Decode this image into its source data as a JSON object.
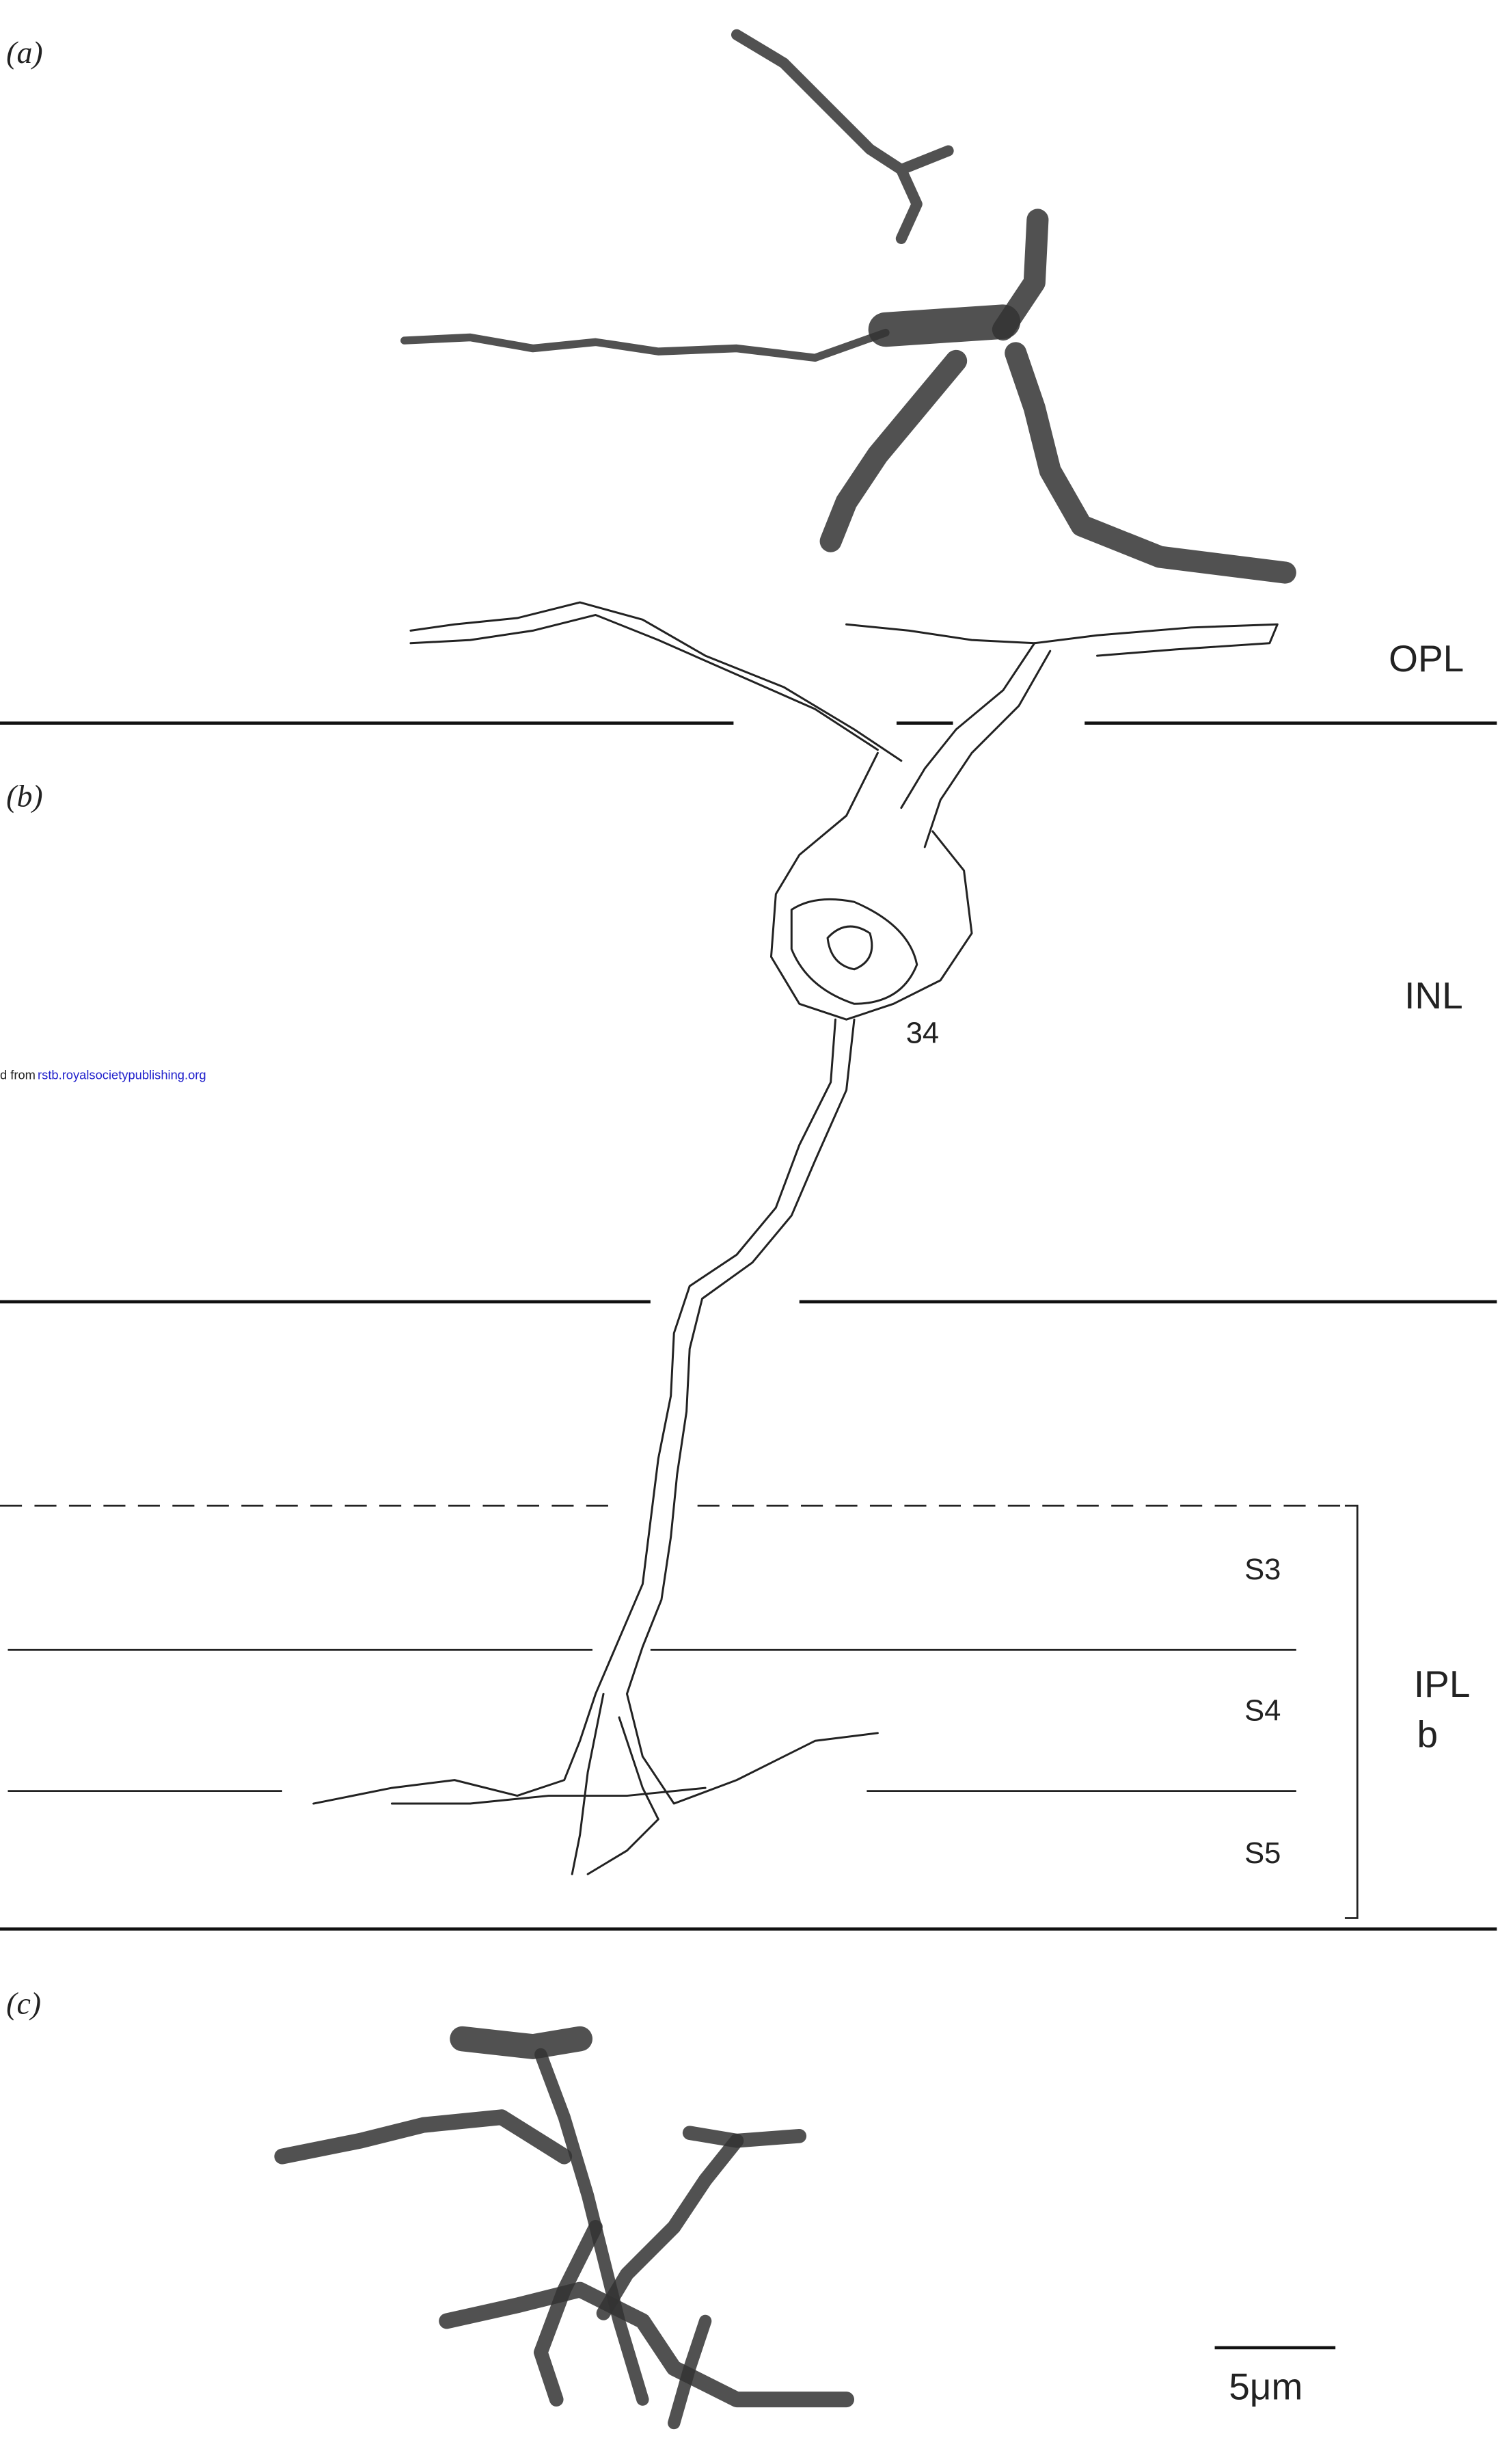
{
  "panels": {
    "a": "(a)",
    "b": "(b)",
    "c": "(c)"
  },
  "layers": {
    "opl": "OPL",
    "inl": "INL",
    "ipl": "IPL",
    "ipl_sub": "b"
  },
  "strata": [
    "S3",
    "S4",
    "S5"
  ],
  "cell_label": "34",
  "scale_bar": "5μm",
  "watermark": {
    "prefix": "d from",
    "link": "rstb.royalsocietypublishing.org"
  }
}
